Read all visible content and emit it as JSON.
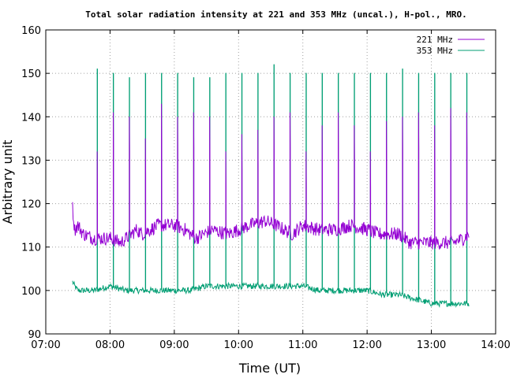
{
  "chart_data": {
    "type": "line",
    "title": "Total solar radiation intensity at 221 and 353 MHz (uncal.), H-pol., MRO.",
    "xlabel": "Time (UT)",
    "ylabel": "Arbitrary unit",
    "xlim": [
      "07:00",
      "14:00"
    ],
    "ylim": [
      90,
      160
    ],
    "x_ticks": [
      "07:00",
      "08:00",
      "09:00",
      "10:00",
      "11:00",
      "12:00",
      "13:00",
      "14:00"
    ],
    "y_ticks": [
      90,
      100,
      110,
      120,
      130,
      140,
      150,
      160
    ],
    "grid": true,
    "legend_position": "top-right",
    "colors": {
      "series_221": "#9400d3",
      "series_353": "#009e73"
    },
    "series": [
      {
        "name": "221 MHz",
        "start": "07:25",
        "end": "13:35",
        "baseline": [
          [
            "07:25",
            119
          ],
          [
            "07:27",
            114
          ],
          [
            "07:30",
            115
          ],
          [
            "07:35",
            113
          ],
          [
            "07:45",
            112
          ],
          [
            "08:00",
            112
          ],
          [
            "08:10",
            111
          ],
          [
            "08:25",
            114
          ],
          [
            "08:30",
            113
          ],
          [
            "08:45",
            115
          ],
          [
            "09:00",
            115
          ],
          [
            "09:10",
            114
          ],
          [
            "09:20",
            112
          ],
          [
            "09:35",
            114
          ],
          [
            "09:50",
            113
          ],
          [
            "10:00",
            114
          ],
          [
            "10:10",
            115
          ],
          [
            "10:25",
            116
          ],
          [
            "10:35",
            115
          ],
          [
            "10:50",
            113
          ],
          [
            "11:00",
            115
          ],
          [
            "11:15",
            114
          ],
          [
            "11:30",
            114
          ],
          [
            "11:45",
            115
          ],
          [
            "12:00",
            114
          ],
          [
            "12:10",
            113
          ],
          [
            "12:20",
            113
          ],
          [
            "12:30",
            113
          ],
          [
            "12:40",
            111
          ],
          [
            "12:50",
            111
          ],
          [
            "13:00",
            111
          ],
          [
            "13:10",
            111
          ],
          [
            "13:20",
            111
          ],
          [
            "13:30",
            112
          ],
          [
            "13:35",
            113
          ]
        ],
        "spikes": [
          [
            "07:48",
            132
          ],
          [
            "08:03",
            141
          ],
          [
            "08:18",
            140
          ],
          [
            "08:33",
            135
          ],
          [
            "08:48",
            143
          ],
          [
            "09:03",
            140
          ],
          [
            "09:18",
            141
          ],
          [
            "09:33",
            140
          ],
          [
            "09:48",
            132
          ],
          [
            "10:03",
            136
          ],
          [
            "10:18",
            137
          ],
          [
            "10:33",
            140
          ],
          [
            "10:48",
            141
          ],
          [
            "11:03",
            132
          ],
          [
            "11:18",
            138
          ],
          [
            "11:33",
            141
          ],
          [
            "11:48",
            138
          ],
          [
            "12:03",
            132
          ],
          [
            "12:18",
            139
          ],
          [
            "12:33",
            140
          ],
          [
            "12:48",
            141
          ],
          [
            "13:03",
            138
          ],
          [
            "13:18",
            142
          ],
          [
            "13:33",
            141
          ]
        ]
      },
      {
        "name": "353 MHz",
        "start": "07:25",
        "end": "13:35",
        "baseline": [
          [
            "07:25",
            102
          ],
          [
            "07:27",
            101
          ],
          [
            "07:30",
            100
          ],
          [
            "07:45",
            100
          ],
          [
            "08:00",
            101
          ],
          [
            "08:15",
            100
          ],
          [
            "08:30",
            100
          ],
          [
            "08:45",
            100
          ],
          [
            "09:00",
            100
          ],
          [
            "09:15",
            100
          ],
          [
            "09:30",
            101
          ],
          [
            "09:45",
            101
          ],
          [
            "10:00",
            101
          ],
          [
            "10:15",
            101
          ],
          [
            "10:30",
            101
          ],
          [
            "10:45",
            101
          ],
          [
            "11:00",
            101
          ],
          [
            "11:15",
            100
          ],
          [
            "11:30",
            100
          ],
          [
            "11:45",
            100
          ],
          [
            "12:00",
            100
          ],
          [
            "12:15",
            99
          ],
          [
            "12:30",
            99
          ],
          [
            "12:45",
            98
          ],
          [
            "13:00",
            97
          ],
          [
            "13:15",
            97
          ],
          [
            "13:30",
            97
          ],
          [
            "13:35",
            97
          ]
        ],
        "spikes": [
          [
            "07:48",
            151
          ],
          [
            "08:03",
            150
          ],
          [
            "08:18",
            149
          ],
          [
            "08:33",
            150
          ],
          [
            "08:48",
            150
          ],
          [
            "09:03",
            150
          ],
          [
            "09:18",
            149
          ],
          [
            "09:33",
            149
          ],
          [
            "09:48",
            150
          ],
          [
            "10:03",
            150
          ],
          [
            "10:18",
            150
          ],
          [
            "10:33",
            152
          ],
          [
            "10:48",
            150
          ],
          [
            "11:03",
            150
          ],
          [
            "11:18",
            150
          ],
          [
            "11:33",
            150
          ],
          [
            "11:48",
            150
          ],
          [
            "12:03",
            150
          ],
          [
            "12:18",
            150
          ],
          [
            "12:33",
            151
          ],
          [
            "12:48",
            150
          ],
          [
            "13:03",
            150
          ],
          [
            "13:18",
            150
          ],
          [
            "13:33",
            150
          ]
        ]
      }
    ]
  }
}
